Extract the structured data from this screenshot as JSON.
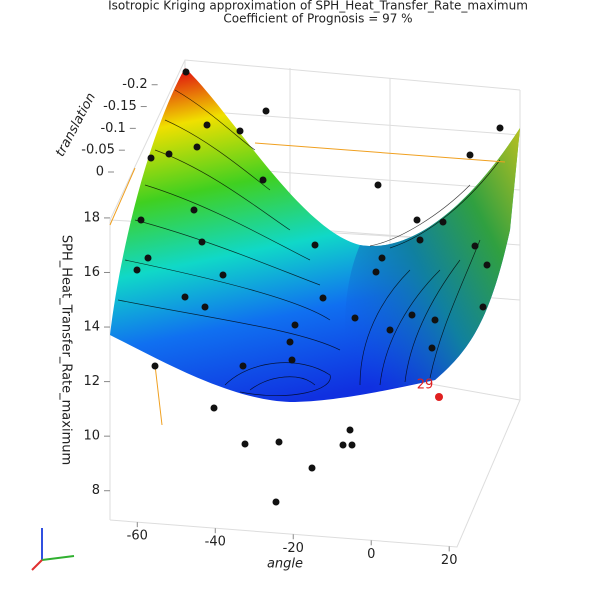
{
  "chart_data": {
    "type": "surface",
    "title": "Isotropic Kriging approximation of SPH_Heat_Transfer_Rate_maximum",
    "subtitle": "Coefficient of Prognosis = 97 %",
    "x_label": "angle",
    "y_label": "translation",
    "z_label": "SPH_Heat_Transfer_Rate_maximum",
    "xlim": [
      -67,
      22
    ],
    "xticks": [
      -60,
      -40,
      -20,
      0,
      20
    ],
    "ylim": [
      0,
      -0.22
    ],
    "yticks": [
      0,
      -0.05,
      -0.1,
      -0.15,
      -0.2
    ],
    "zlim": [
      7,
      19.5
    ],
    "zticks": [
      8,
      10,
      12,
      14,
      16,
      18
    ],
    "annotation": "29"
  }
}
